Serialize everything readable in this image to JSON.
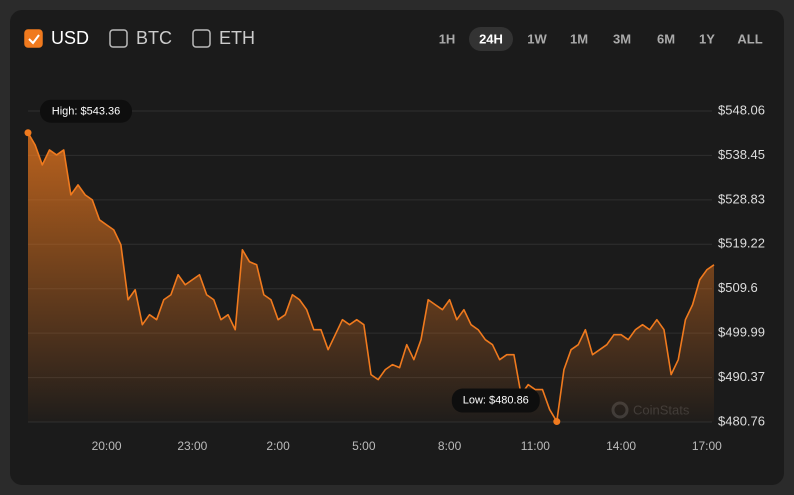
{
  "chart_data": {
    "type": "area",
    "toggles": [
      {
        "label": "USD",
        "checked": true
      },
      {
        "label": "BTC",
        "checked": false
      },
      {
        "label": "ETH",
        "checked": false
      }
    ],
    "ranges": [
      {
        "label": "1H",
        "active": false
      },
      {
        "label": "24H",
        "active": true
      },
      {
        "label": "1W",
        "active": false
      },
      {
        "label": "1M",
        "active": false
      },
      {
        "label": "3M",
        "active": false
      },
      {
        "label": "6M",
        "active": false
      },
      {
        "label": "1Y",
        "active": false
      },
      {
        "label": "ALL",
        "active": false
      }
    ],
    "high_label": "High: $543.36",
    "low_label": "Low: $480.86",
    "watermark": "CoinStats",
    "color": "#f07a1e",
    "grid": true,
    "categories": [
      null,
      null,
      null,
      null,
      null,
      null,
      null,
      null,
      null,
      null,
      null,
      "20:00",
      null,
      null,
      null,
      null,
      null,
      null,
      null,
      null,
      null,
      null,
      null,
      "23:00",
      null,
      null,
      null,
      null,
      null,
      null,
      null,
      null,
      null,
      null,
      null,
      "2:00",
      null,
      null,
      null,
      null,
      null,
      null,
      null,
      null,
      null,
      null,
      null,
      "5:00",
      null,
      null,
      null,
      null,
      null,
      null,
      null,
      null,
      null,
      null,
      null,
      "8:00",
      null,
      null,
      null,
      null,
      null,
      null,
      null,
      null,
      null,
      null,
      null,
      "11:00",
      null,
      null,
      null,
      null,
      null,
      null,
      null,
      null,
      null,
      null,
      null,
      "14:00",
      null,
      null,
      null,
      null,
      null,
      null,
      null,
      null,
      null,
      null,
      null,
      "17:00",
      null
    ],
    "values": [
      543.36,
      540.71,
      536.39,
      539.63,
      538.55,
      539.63,
      529.91,
      532.07,
      529.91,
      528.83,
      524.51,
      523.42,
      522.34,
      519.1,
      507.22,
      509.38,
      501.82,
      503.98,
      502.9,
      507.22,
      508.3,
      512.62,
      510.46,
      511.54,
      512.62,
      508.3,
      507.22,
      502.9,
      503.98,
      500.73,
      518.02,
      515.43,
      514.78,
      508.3,
      507.22,
      502.9,
      503.98,
      508.3,
      507.22,
      505.06,
      500.73,
      500.73,
      496.41,
      499.65,
      502.9,
      501.82,
      502.9,
      501.82,
      491.01,
      489.93,
      492.09,
      493.17,
      492.52,
      497.49,
      494.25,
      498.57,
      507.22,
      506.14,
      505.06,
      507.22,
      502.9,
      505.06,
      501.82,
      500.73,
      498.57,
      497.49,
      494.25,
      495.33,
      495.33,
      486.69,
      488.85,
      487.77,
      487.77,
      483.45,
      480.86,
      492.09,
      496.41,
      497.49,
      500.73,
      495.33,
      496.41,
      497.49,
      499.65,
      499.65,
      498.57,
      500.73,
      501.82,
      500.73,
      502.9,
      500.73,
      491.01,
      494.25,
      502.9,
      506.14,
      511.54,
      513.7,
      514.78
    ],
    "ylim": [
      480.76,
      548.06
    ],
    "yticks": [
      {
        "value": 548.06,
        "label": "$548.06"
      },
      {
        "value": 538.45,
        "label": "$538.45"
      },
      {
        "value": 528.83,
        "label": "$528.83"
      },
      {
        "value": 519.22,
        "label": "$519.22"
      },
      {
        "value": 509.6,
        "label": "$509.6"
      },
      {
        "value": 499.99,
        "label": "$499.99"
      },
      {
        "value": 490.37,
        "label": "$490.37"
      },
      {
        "value": 480.76,
        "label": "$480.76"
      }
    ]
  }
}
